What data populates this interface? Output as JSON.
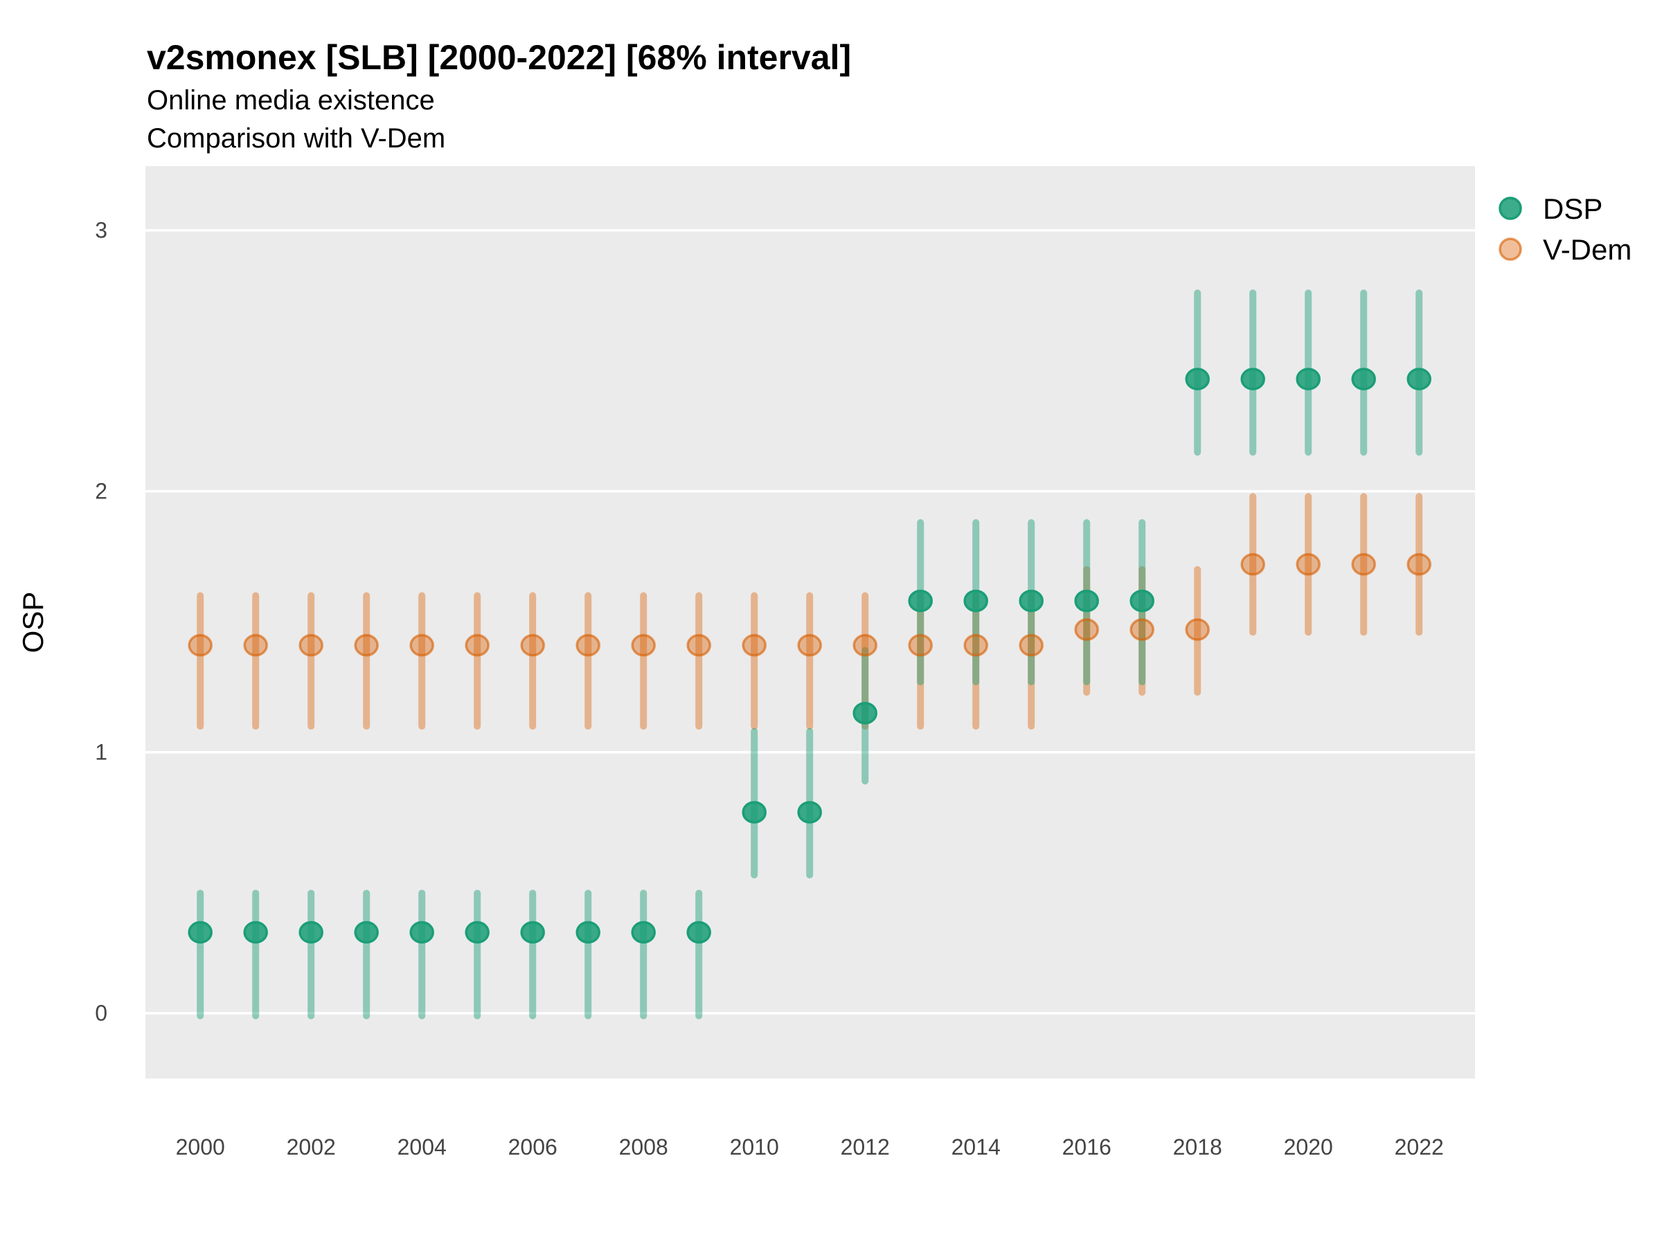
{
  "chart_data": {
    "type": "scatter",
    "subtype": "pointrange",
    "title": "v2smonex [SLB] [2000-2022] [68% interval]",
    "subtitle": "Online media existence",
    "subtitle2": "Comparison with V-Dem",
    "ylabel": "OSP",
    "xlabel": "",
    "interval_label": "68% interval",
    "xticks": [
      2000,
      2002,
      2004,
      2006,
      2008,
      2010,
      2012,
      2014,
      2016,
      2018,
      2020,
      2022
    ],
    "yticks": [
      0,
      1,
      2,
      3
    ],
    "xlim": [
      1999.01,
      2023.01
    ],
    "ylim": [
      -0.25,
      3.246
    ],
    "grid": "horizontal-major-only",
    "panel_bg": "#EBEBEB",
    "gridline_color": "#FFFFFF",
    "tick_label_color": "#444444",
    "legend_position": "right-top",
    "legend": [
      "DSP",
      "V-Dem"
    ],
    "series": [
      {
        "name": "DSP",
        "base_color": "#1B9E77",
        "marker_fill": "rgba(27,158,119,0.85)",
        "marker_stroke": "rgba(27,158,119,1)",
        "line_color": "rgba(27,158,119,0.45)",
        "points": [
          {
            "x": 2000,
            "y": 0.31,
            "lo": -0.01,
            "hi": 0.46
          },
          {
            "x": 2001,
            "y": 0.31,
            "lo": -0.01,
            "hi": 0.46
          },
          {
            "x": 2002,
            "y": 0.31,
            "lo": -0.01,
            "hi": 0.46
          },
          {
            "x": 2003,
            "y": 0.31,
            "lo": -0.01,
            "hi": 0.46
          },
          {
            "x": 2004,
            "y": 0.31,
            "lo": -0.01,
            "hi": 0.46
          },
          {
            "x": 2005,
            "y": 0.31,
            "lo": -0.01,
            "hi": 0.46
          },
          {
            "x": 2006,
            "y": 0.31,
            "lo": -0.01,
            "hi": 0.46
          },
          {
            "x": 2007,
            "y": 0.31,
            "lo": -0.01,
            "hi": 0.46
          },
          {
            "x": 2008,
            "y": 0.31,
            "lo": -0.01,
            "hi": 0.46
          },
          {
            "x": 2009,
            "y": 0.31,
            "lo": -0.01,
            "hi": 0.46
          },
          {
            "x": 2010,
            "y": 0.77,
            "lo": 0.53,
            "hi": 1.08
          },
          {
            "x": 2011,
            "y": 0.77,
            "lo": 0.53,
            "hi": 1.08
          },
          {
            "x": 2012,
            "y": 1.15,
            "lo": 0.89,
            "hi": 1.39
          },
          {
            "x": 2013,
            "y": 1.58,
            "lo": 1.27,
            "hi": 1.88
          },
          {
            "x": 2014,
            "y": 1.58,
            "lo": 1.27,
            "hi": 1.88
          },
          {
            "x": 2015,
            "y": 1.58,
            "lo": 1.27,
            "hi": 1.88
          },
          {
            "x": 2016,
            "y": 1.58,
            "lo": 1.27,
            "hi": 1.88
          },
          {
            "x": 2017,
            "y": 1.58,
            "lo": 1.27,
            "hi": 1.88
          },
          {
            "x": 2018,
            "y": 2.43,
            "lo": 2.15,
            "hi": 2.76
          },
          {
            "x": 2019,
            "y": 2.43,
            "lo": 2.15,
            "hi": 2.76
          },
          {
            "x": 2020,
            "y": 2.43,
            "lo": 2.15,
            "hi": 2.76
          },
          {
            "x": 2021,
            "y": 2.43,
            "lo": 2.15,
            "hi": 2.76
          },
          {
            "x": 2022,
            "y": 2.43,
            "lo": 2.15,
            "hi": 2.76
          }
        ]
      },
      {
        "name": "V-Dem",
        "base_color": "#D95F02",
        "marker_fill": "rgba(217,95,2,0.40)",
        "marker_stroke": "rgba(217,95,2,0.62)",
        "line_color": "rgba(217,95,2,0.40)",
        "points": [
          {
            "x": 2000,
            "y": 1.41,
            "lo": 1.1,
            "hi": 1.6
          },
          {
            "x": 2001,
            "y": 1.41,
            "lo": 1.1,
            "hi": 1.6
          },
          {
            "x": 2002,
            "y": 1.41,
            "lo": 1.1,
            "hi": 1.6
          },
          {
            "x": 2003,
            "y": 1.41,
            "lo": 1.1,
            "hi": 1.6
          },
          {
            "x": 2004,
            "y": 1.41,
            "lo": 1.1,
            "hi": 1.6
          },
          {
            "x": 2005,
            "y": 1.41,
            "lo": 1.1,
            "hi": 1.6
          },
          {
            "x": 2006,
            "y": 1.41,
            "lo": 1.1,
            "hi": 1.6
          },
          {
            "x": 2007,
            "y": 1.41,
            "lo": 1.1,
            "hi": 1.6
          },
          {
            "x": 2008,
            "y": 1.41,
            "lo": 1.1,
            "hi": 1.6
          },
          {
            "x": 2009,
            "y": 1.41,
            "lo": 1.1,
            "hi": 1.6
          },
          {
            "x": 2010,
            "y": 1.41,
            "lo": 1.1,
            "hi": 1.6
          },
          {
            "x": 2011,
            "y": 1.41,
            "lo": 1.1,
            "hi": 1.6
          },
          {
            "x": 2012,
            "y": 1.41,
            "lo": 1.1,
            "hi": 1.6
          },
          {
            "x": 2013,
            "y": 1.41,
            "lo": 1.1,
            "hi": 1.6
          },
          {
            "x": 2014,
            "y": 1.41,
            "lo": 1.1,
            "hi": 1.6
          },
          {
            "x": 2015,
            "y": 1.41,
            "lo": 1.1,
            "hi": 1.6
          },
          {
            "x": 2016,
            "y": 1.47,
            "lo": 1.23,
            "hi": 1.7
          },
          {
            "x": 2017,
            "y": 1.47,
            "lo": 1.23,
            "hi": 1.7
          },
          {
            "x": 2018,
            "y": 1.47,
            "lo": 1.23,
            "hi": 1.7
          },
          {
            "x": 2019,
            "y": 1.72,
            "lo": 1.46,
            "hi": 1.98
          },
          {
            "x": 2020,
            "y": 1.72,
            "lo": 1.46,
            "hi": 1.98
          },
          {
            "x": 2021,
            "y": 1.72,
            "lo": 1.46,
            "hi": 1.98
          },
          {
            "x": 2022,
            "y": 1.72,
            "lo": 1.46,
            "hi": 1.98
          }
        ]
      }
    ]
  }
}
